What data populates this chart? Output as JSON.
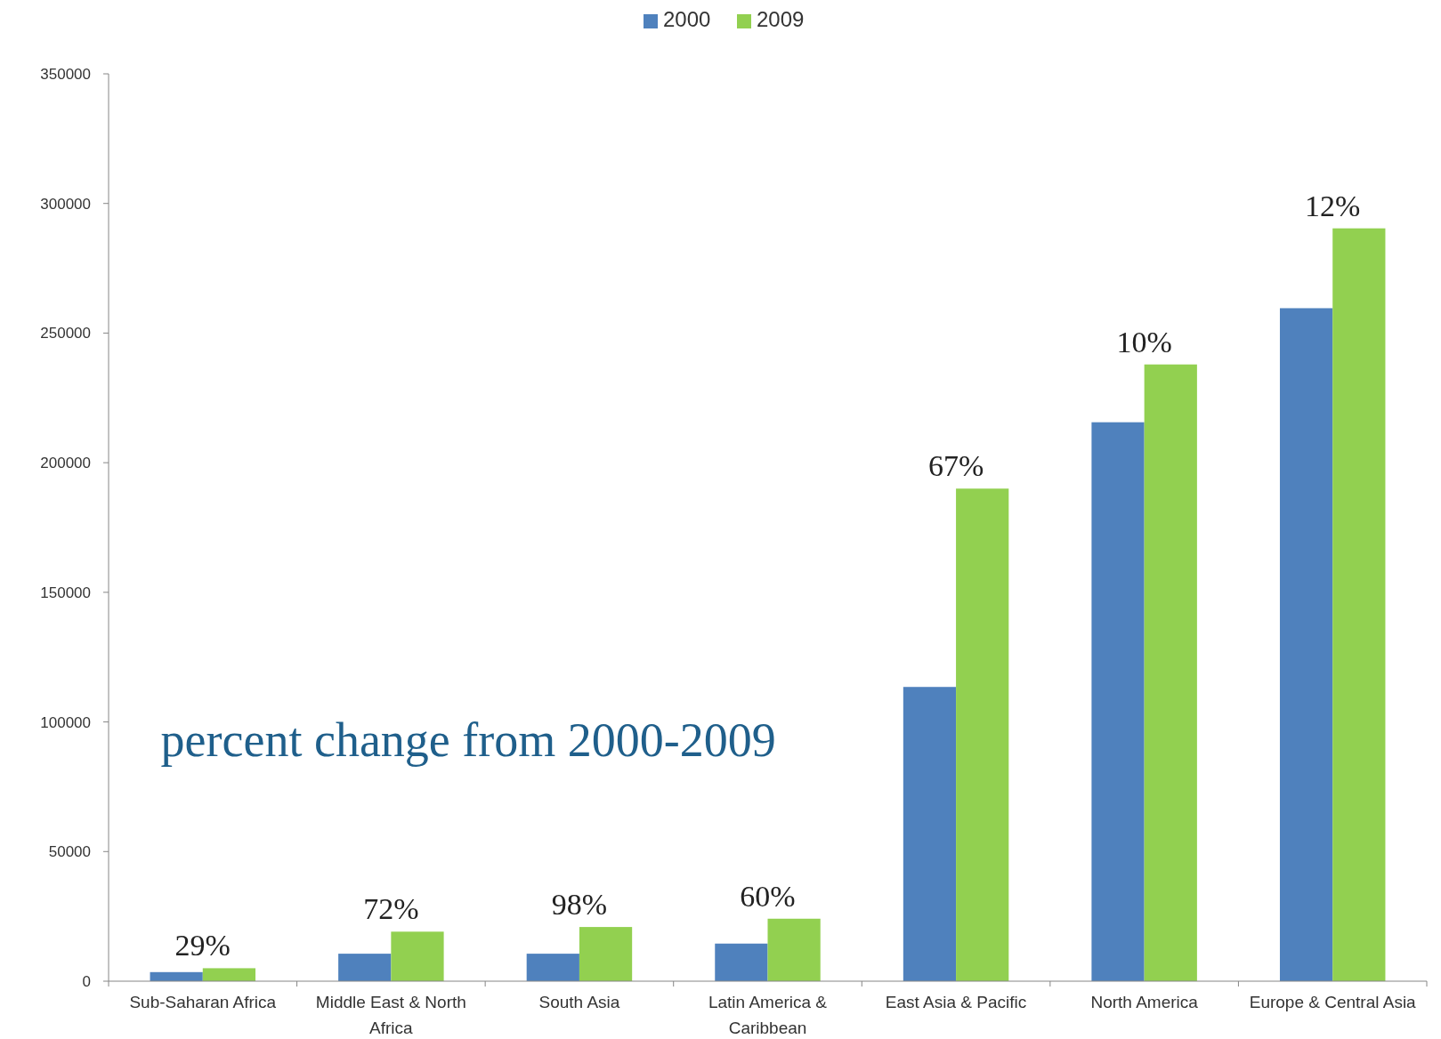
{
  "chart_data": {
    "type": "bar",
    "categories": [
      "Sub-Saharan Africa",
      "Middle East & North Africa",
      "South Asia",
      "Latin America & Caribbean",
      "East Asia & Pacific",
      "North America",
      "Europe & Central Asia"
    ],
    "series": [
      {
        "name": "2000",
        "color": "#4f81bd",
        "values": [
          3500,
          10600,
          10600,
          14500,
          113500,
          215600,
          259600
        ]
      },
      {
        "name": "2009",
        "color": "#92d050",
        "values": [
          5000,
          19100,
          20900,
          24100,
          190000,
          237900,
          290400
        ]
      }
    ],
    "ylim": [
      0,
      350000
    ],
    "yticks": [
      0,
      50000,
      100000,
      150000,
      200000,
      250000,
      300000,
      350000
    ],
    "grid": false,
    "legend": "top",
    "annotations": [
      "percent change from 2000-2009",
      {
        "text": "29%",
        "x": "Sub-Saharan Africa",
        "y": 5000
      },
      {
        "text": "72%",
        "x": "Middle East & North Africa",
        "y": 19100
      },
      {
        "text": "98%",
        "x": "South Asia",
        "y": 20900
      },
      {
        "text": "60%",
        "x": "Latin America & Caribbean",
        "y": 24100
      },
      {
        "text": "67%",
        "x": "East Asia & Pacific",
        "y": 190000
      },
      {
        "text": "10%",
        "x": "North America",
        "y": 237900
      },
      {
        "text": "12%",
        "x": "Europe & Central Asia",
        "y": 290400
      }
    ]
  }
}
